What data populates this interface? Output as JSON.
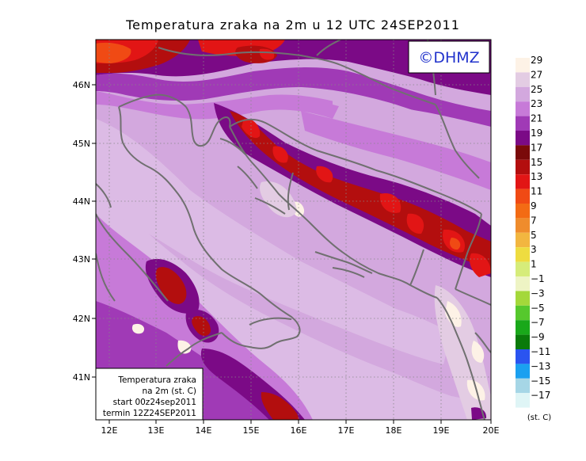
{
  "title": "Temperatura zraka na 2m u 12 UTC 24SEP2011",
  "brand": "©DHMZ",
  "lat_labels": [
    "46N",
    "45N",
    "44N",
    "43N",
    "42N",
    "41N"
  ],
  "lon_labels": [
    "12E",
    "13E",
    "14E",
    "15E",
    "16E",
    "17E",
    "18E",
    "19E",
    "20E"
  ],
  "legend": {
    "unit": "(st. C)",
    "bins": [
      {
        "color": "#fdf2e6"
      },
      {
        "color": "#e3cce3"
      },
      {
        "color": "#d3a8de"
      },
      {
        "color": "#c77ad8"
      },
      {
        "color": "#a03ab6"
      },
      {
        "color": "#7b0a86"
      },
      {
        "color": "#7a0a0a"
      },
      {
        "color": "#b30e0e"
      },
      {
        "color": "#e21515"
      },
      {
        "color": "#f04a14"
      },
      {
        "color": "#f36b14"
      },
      {
        "color": "#ef8c2c"
      },
      {
        "color": "#f2b640"
      },
      {
        "color": "#eedc40"
      },
      {
        "color": "#d6ec7a"
      },
      {
        "color": "#eef4c4"
      },
      {
        "color": "#a4d83a"
      },
      {
        "color": "#56c82d"
      },
      {
        "color": "#19a81a"
      },
      {
        "color": "#0a7a0a"
      },
      {
        "color": "#2a54f0"
      },
      {
        "color": "#1aa0f0"
      },
      {
        "color": "#a6d6e6"
      },
      {
        "color": "#dff5f6"
      }
    ],
    "ticks": [
      "29",
      "27",
      "25",
      "23",
      "21",
      "19",
      "17",
      "15",
      "13",
      "11",
      "9",
      "7",
      "5",
      "3",
      "1",
      "−1",
      "−3",
      "−5",
      "−7",
      "−9",
      "−11",
      "−13",
      "−15",
      "−17"
    ]
  },
  "inset": {
    "line1": "Temperatura zraka",
    "line2": "na 2m (st. C)",
    "line3": "start 00z24sep2011",
    "line4": "termin 12Z24SEP2011"
  }
}
